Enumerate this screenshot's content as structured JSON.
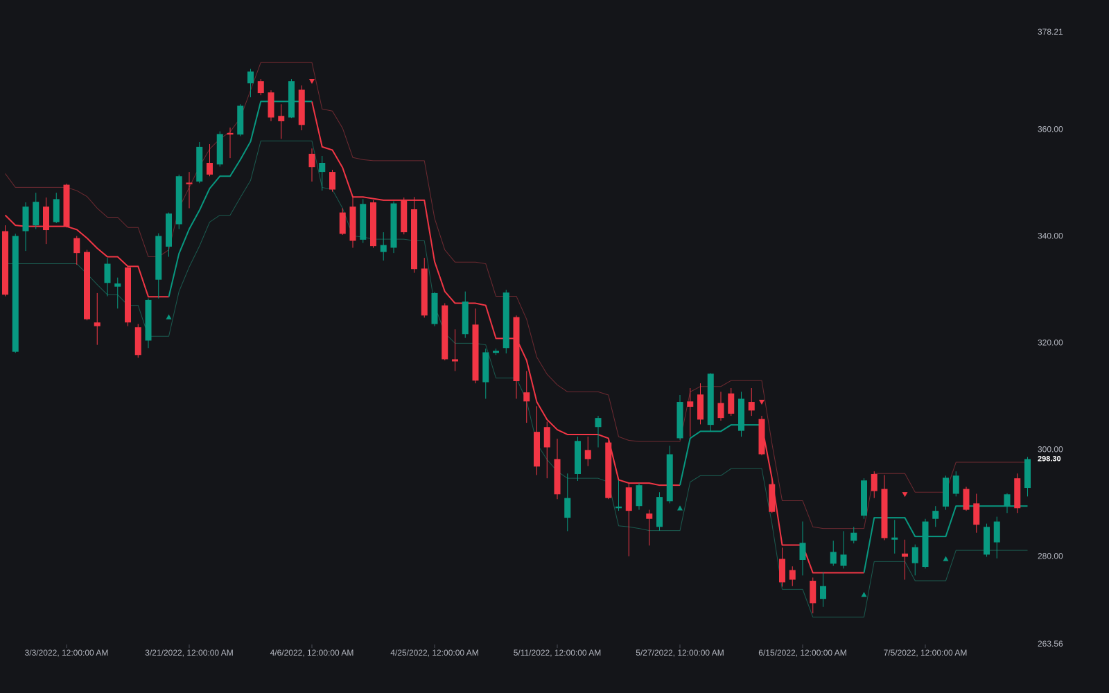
{
  "chart_data": {
    "type": "candlestick",
    "background": "#141519",
    "categories": [
      null,
      null,
      null,
      null,
      null,
      null,
      "3/3/2022, 12:00:00 AM",
      null,
      null,
      null,
      null,
      null,
      null,
      null,
      null,
      null,
      null,
      null,
      "3/21/2022, 12:00:00 AM",
      null,
      null,
      null,
      null,
      null,
      null,
      null,
      null,
      null,
      null,
      null,
      "4/6/2022, 12:00:00 AM",
      null,
      null,
      null,
      null,
      null,
      null,
      null,
      null,
      null,
      null,
      null,
      "4/25/2022, 12:00:00 AM",
      null,
      null,
      null,
      null,
      null,
      null,
      null,
      null,
      null,
      null,
      null,
      "5/11/2022, 12:00:00 AM",
      null,
      null,
      null,
      null,
      null,
      null,
      null,
      null,
      null,
      null,
      null,
      "5/27/2022, 12:00:00 AM",
      null,
      null,
      null,
      null,
      null,
      null,
      null,
      null,
      null,
      null,
      null,
      "6/15/2022, 12:00:00 AM",
      null,
      null,
      null,
      null,
      null,
      null,
      null,
      null,
      null,
      null,
      null,
      "7/5/2022, 12:00:00 AM",
      null,
      null,
      null,
      null,
      null,
      null,
      null,
      null,
      null,
      null
    ],
    "ylim": [
      263.56,
      378.21
    ],
    "yticks": [
      263.56,
      {
        "value": 280,
        "label": "280.00"
      },
      {
        "value": 300,
        "label": "300.00"
      },
      {
        "value": 320,
        "label": "320.00"
      },
      {
        "value": 340,
        "label": "340.00"
      },
      {
        "value": 360,
        "label": "360.00"
      },
      378.21
    ],
    "last_price": {
      "value": 298.3,
      "label": "298.30"
    },
    "candles": {
      "up_color": "#089981",
      "down_color": "#f23645",
      "open": [
        341.0,
        318.4,
        341.0,
        342.1,
        345.6,
        342.7,
        349.7,
        339.7,
        337.1,
        323.9,
        331.3,
        330.6,
        334.2,
        323.0,
        320.5,
        331.9,
        338.1,
        342.3,
        350.1,
        350.3,
        353.8,
        353.5,
        359.4,
        359.1,
        368.7,
        369.1,
        367.0,
        362.6,
        362.3,
        367.5,
        355.5,
        352.1,
        352.1,
        344.5,
        345.6,
        339.4,
        346.4,
        337.1,
        337.9,
        346.8,
        345.1,
        334.0,
        323.6,
        327.1,
        317.0,
        321.7,
        323.5,
        312.7,
        318.2,
        319.1,
        324.9,
        310.8,
        303.4,
        304.3,
        298.3,
        287.3,
        295.5,
        300.0,
        304.3,
        301.4,
        289.1,
        293.0,
        289.5,
        288.1,
        285.6,
        290.4,
        302.2,
        309.1,
        310.4,
        304.7,
        308.8,
        310.6,
        303.6,
        309.0,
        305.8,
        293.6,
        279.6,
        277.5,
        279.4,
        275.5,
        272.1,
        278.7,
        278.3,
        283.0,
        287.7,
        295.5,
        292.7,
        283.2,
        280.6,
        278.8,
        278.1,
        287.1,
        289.4,
        291.8,
        292.7,
        290.0,
        280.4,
        282.7,
        289.5,
        294.7,
        292.9
      ],
      "high": [
        342.1,
        340.5,
        346.4,
        348.2,
        347.3,
        348.2,
        349.9,
        340.1,
        337.5,
        329.4,
        336.0,
        332.3,
        334.5,
        323.6,
        328.4,
        340.6,
        344.5,
        351.6,
        352.1,
        357.7,
        357.3,
        359.7,
        360.4,
        364.8,
        371.4,
        369.5,
        367.4,
        364.8,
        369.5,
        368.3,
        356.5,
        355.1,
        352.5,
        345.3,
        347.7,
        347.0,
        346.8,
        340.8,
        346.6,
        347.3,
        347.4,
        336.0,
        329.6,
        327.5,
        322.6,
        329.7,
        326.5,
        319.0,
        319.0,
        330.0,
        325.2,
        314.8,
        308.2,
        305.3,
        302.1,
        295.6,
        302.5,
        302.5,
        306.4,
        301.8,
        294.3,
        293.8,
        293.8,
        288.8,
        292.1,
        300.8,
        310.3,
        311.6,
        312.5,
        314.4,
        310.9,
        311.6,
        310.9,
        311.6,
        306.4,
        294.7,
        281.7,
        278.2,
        286.6,
        276.1,
        277.1,
        283.0,
        284.8,
        285.6,
        294.7,
        296.0,
        295.3,
        286.9,
        283.2,
        282.3,
        287.1,
        289.5,
        295.2,
        296.0,
        293.1,
        291.8,
        286.2,
        287.5,
        291.9,
        295.6,
        298.7
      ],
      "low": [
        328.8,
        318.2,
        337.3,
        341.4,
        338.6,
        342.5,
        341.7,
        334.7,
        324.3,
        319.7,
        328.8,
        326.5,
        323.2,
        317.3,
        319.1,
        328.4,
        336.2,
        341.4,
        345.3,
        350.0,
        351.3,
        353.1,
        354.7,
        358.8,
        366.1,
        366.5,
        361.6,
        358.3,
        362.2,
        359.9,
        350.3,
        348.6,
        348.4,
        340.3,
        337.9,
        338.8,
        337.9,
        335.5,
        336.9,
        340.4,
        333.2,
        324.8,
        323.2,
        316.8,
        314.8,
        321.0,
        312.5,
        309.6,
        317.8,
        318.1,
        309.6,
        305.1,
        295.3,
        294.7,
        290.8,
        284.8,
        294.2,
        297.0,
        300.5,
        290.8,
        288.6,
        280.1,
        288.8,
        282.1,
        284.9,
        290.0,
        301.9,
        302.5,
        304.8,
        303.6,
        305.5,
        306.4,
        302.5,
        306.4,
        299.0,
        288.2,
        274.4,
        274.5,
        276.5,
        269.4,
        270.6,
        278.3,
        277.8,
        282.5,
        287.1,
        291.0,
        283.1,
        280.6,
        275.7,
        276.5,
        277.8,
        285.6,
        288.8,
        291.3,
        288.6,
        284.5,
        280.0,
        279.7,
        288.2,
        288.2,
        291.3
      ],
      "close": [
        329.1,
        340.1,
        345.6,
        346.5,
        341.2,
        347.0,
        341.8,
        336.9,
        324.5,
        323.2,
        334.9,
        331.2,
        323.9,
        317.8,
        328.1,
        340.1,
        344.3,
        351.3,
        349.8,
        356.8,
        351.6,
        359.2,
        359.1,
        364.5,
        370.9,
        366.9,
        362.3,
        361.6,
        369.1,
        360.9,
        353.0,
        353.8,
        348.8,
        340.5,
        339.2,
        346.1,
        338.2,
        338.4,
        346.2,
        340.8,
        333.9,
        325.2,
        329.4,
        317.0,
        316.6,
        327.8,
        313.0,
        318.3,
        318.6,
        329.5,
        312.9,
        309.1,
        296.9,
        300.5,
        291.7,
        291.0,
        301.7,
        298.3,
        306.0,
        291.0,
        289.4,
        288.6,
        293.4,
        287.1,
        291.2,
        299.2,
        309.0,
        308.1,
        305.7,
        314.3,
        306.0,
        306.8,
        309.6,
        307.4,
        299.2,
        288.4,
        275.2,
        275.7,
        282.6,
        271.3,
        274.5,
        280.9,
        280.4,
        284.5,
        294.3,
        292.3,
        283.5,
        283.6,
        280.0,
        281.8,
        286.6,
        288.6,
        294.8,
        295.2,
        288.8,
        286.0,
        285.6,
        286.6,
        291.7,
        289.1,
        298.3
      ]
    },
    "lines": [
      {
        "color": "#6e2a31",
        "width": 1,
        "values": [
          351.8,
          349.2,
          349.2,
          349.2,
          349.2,
          349.2,
          349.2,
          348.6,
          347.5,
          345.3,
          343.6,
          343.6,
          341.7,
          341.7,
          336.2,
          336.2,
          337.5,
          345.3,
          349.2,
          353.1,
          356.4,
          358.3,
          359.6,
          362.2,
          367.4,
          372.6,
          372.6,
          372.6,
          372.6,
          372.6,
          372.6,
          363.9,
          363.5,
          360.3,
          354.8,
          354.4,
          354.2,
          354.2,
          354.2,
          354.2,
          354.2,
          354.2,
          343.4,
          337.5,
          335.2,
          335.2,
          335.2,
          334.9,
          328.8,
          328.8,
          328.8,
          324.5,
          317.4,
          314.2,
          312.2,
          310.9,
          310.9,
          310.9,
          310.9,
          310.3,
          302.5,
          301.8,
          301.6,
          301.6,
          301.6,
          301.6,
          301.6,
          310.9,
          311.9,
          311.9,
          311.9,
          313.0,
          313.0,
          313.0,
          313.0,
          301.2,
          290.5,
          290.5,
          290.5,
          285.6,
          285.3,
          285.3,
          285.3,
          285.3,
          285.3,
          295.6,
          295.6,
          295.6,
          295.6,
          292.1,
          292.1,
          292.1,
          292.1,
          297.7,
          297.7,
          297.7,
          297.7,
          297.7,
          297.7,
          297.7,
          297.7
        ]
      },
      {
        "color": "#1b5b50",
        "width": 1,
        "values": [
          334.9,
          334.9,
          334.9,
          334.9,
          334.9,
          334.9,
          334.9,
          334.9,
          333.0,
          331.0,
          329.1,
          329.1,
          327.1,
          327.1,
          321.3,
          321.3,
          321.3,
          329.7,
          334.3,
          338.2,
          342.7,
          344.0,
          344.0,
          347.3,
          350.5,
          357.9,
          357.9,
          357.9,
          357.9,
          357.9,
          357.9,
          349.2,
          348.8,
          345.3,
          340.1,
          339.9,
          339.5,
          339.5,
          339.5,
          339.5,
          339.2,
          339.2,
          327.1,
          321.9,
          320.0,
          320.0,
          320.0,
          319.7,
          313.5,
          313.5,
          313.5,
          309.2,
          301.2,
          298.2,
          296.0,
          294.7,
          294.7,
          294.7,
          294.7,
          294.0,
          285.8,
          285.6,
          285.3,
          284.9,
          284.9,
          284.9,
          284.9,
          294.0,
          295.2,
          295.2,
          295.2,
          296.5,
          296.5,
          296.5,
          296.5,
          286.2,
          273.9,
          273.9,
          273.9,
          268.7,
          268.7,
          268.7,
          268.7,
          268.7,
          268.7,
          279.1,
          279.1,
          279.1,
          279.1,
          275.5,
          275.5,
          275.5,
          275.5,
          281.2,
          281.2,
          281.2,
          281.2,
          281.2,
          281.2,
          281.2,
          281.2
        ]
      },
      {
        "color": "#f23645",
        "width": 2,
        "values": [
          344.0,
          342.1,
          341.9,
          341.9,
          341.9,
          341.9,
          341.9,
          341.3,
          339.7,
          337.8,
          336.2,
          336.2,
          334.4,
          334.4,
          328.7,
          328.7,
          328.7,
          null,
          null,
          null,
          null,
          null,
          null,
          null,
          null,
          null,
          null,
          null,
          null,
          null,
          365.3,
          356.8,
          356.2,
          352.9,
          347.4,
          347.4,
          347.1,
          346.8,
          346.8,
          346.8,
          346.8,
          346.8,
          335.3,
          329.7,
          327.5,
          327.5,
          327.5,
          327.1,
          320.9,
          320.9,
          320.9,
          316.8,
          309.0,
          305.7,
          303.8,
          302.9,
          302.9,
          302.9,
          302.9,
          302.2,
          294.4,
          293.8,
          293.8,
          293.8,
          293.4,
          293.4,
          293.4,
          null,
          null,
          null,
          null,
          null,
          null,
          null,
          304.7,
          294.7,
          282.2,
          282.2,
          282.2,
          277.0,
          277.0,
          277.0,
          277.0,
          277.0,
          277.0,
          null,
          null,
          null,
          null,
          null,
          null,
          null,
          null,
          null,
          null,
          null,
          null,
          null,
          null,
          null,
          null
        ]
      },
      {
        "color": "#089981",
        "width": 2,
        "values": [
          null,
          null,
          null,
          null,
          null,
          null,
          null,
          null,
          null,
          null,
          null,
          null,
          null,
          null,
          null,
          null,
          328.7,
          336.8,
          341.4,
          344.9,
          349.0,
          351.3,
          351.3,
          354.4,
          357.8,
          365.3,
          365.3,
          365.3,
          365.3,
          365.3,
          365.3,
          null,
          null,
          null,
          null,
          null,
          null,
          null,
          null,
          null,
          null,
          null,
          null,
          null,
          null,
          null,
          null,
          null,
          null,
          null,
          null,
          null,
          null,
          null,
          null,
          null,
          null,
          null,
          null,
          null,
          null,
          null,
          null,
          null,
          null,
          null,
          293.4,
          302.2,
          303.5,
          303.5,
          303.5,
          304.7,
          304.7,
          304.7,
          304.7,
          null,
          null,
          null,
          null,
          null,
          null,
          null,
          null,
          null,
          277.0,
          287.3,
          287.3,
          287.3,
          287.3,
          283.8,
          283.8,
          283.8,
          283.8,
          289.5,
          289.5,
          289.5,
          289.5,
          289.5,
          289.5,
          289.5,
          289.5
        ]
      }
    ],
    "markers": [
      {
        "direction": "up",
        "color": "#089981",
        "x": [
          16,
          66,
          84,
          92
        ],
        "y": [
          324.9,
          289.1,
          272.9,
          279.6
        ]
      },
      {
        "direction": "down",
        "color": "#f23645",
        "x": [
          30,
          74,
          88
        ],
        "y": [
          369.1,
          309.0,
          291.7
        ]
      }
    ]
  }
}
